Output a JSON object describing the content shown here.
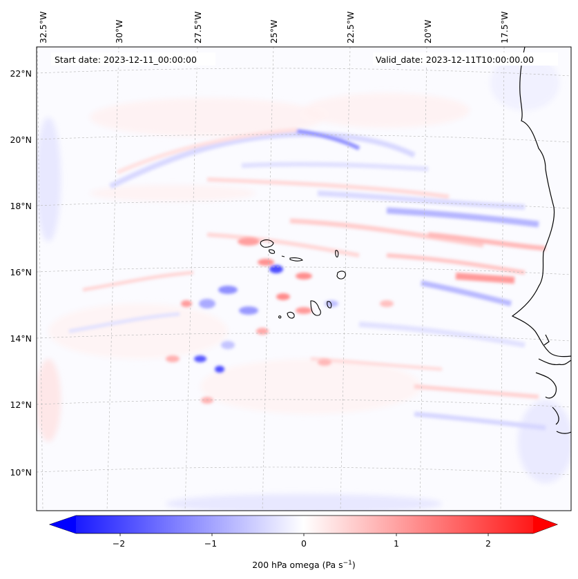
{
  "map": {
    "start_date": "Start date: 2023-12-11_00:00:00",
    "valid_date": "Valid_date: 2023-12-11T10:00:00.00",
    "lon_labels": [
      "32.5°W",
      "30°W",
      "27.5°W",
      "25°W",
      "22.5°W",
      "20°W",
      "17.5°W"
    ],
    "lat_labels": [
      "22°N",
      "20°N",
      "18°N",
      "16°N",
      "14°N",
      "12°N",
      "10°N"
    ]
  },
  "colorbar": {
    "ticks": [
      "−2",
      "−1",
      "0",
      "1",
      "2"
    ],
    "label_main": "200 hPa omega (Pa s",
    "label_sup": "−1",
    "label_end": ")"
  },
  "colors": {
    "negative": "#0000ff",
    "neutral": "#ffffff",
    "positive": "#ff0000",
    "coast": "#000000",
    "grid": "#bbbbbb"
  }
}
